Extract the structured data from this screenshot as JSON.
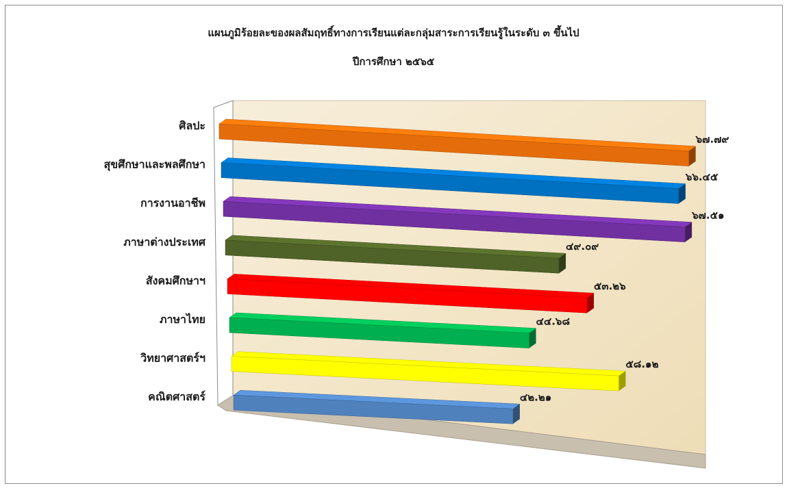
{
  "chart_data": {
    "type": "bar",
    "orientation": "horizontal",
    "title": "แผนภูมิร้อยละของผลสัมฤทธิ์ทางการเรียนแต่ละกลุ่มสาระการเรียนรู้ในระดับ ๓ ขึ้นไป",
    "subtitle": "ปีการศึกษา ๒๕๖๕",
    "categories": [
      "ศิลปะ",
      "สุขศึกษาและพลศึกษา",
      "การงานอาชีพ",
      "ภาษาต่างประเทศ",
      "สังคมศึกษาฯ",
      "ภาษาไทย",
      "วิทยาศาสตร์ฯ",
      "คณิตศาสตร์"
    ],
    "values": [
      67.79,
      66.45,
      67.51,
      49.09,
      53.26,
      44.68,
      58.12,
      42.21
    ],
    "value_labels": [
      "๖๗.๗๙",
      "๖๖.๔๕",
      "๖๗.๕๑",
      "๔๙.๐๙",
      "๕๓.๒๖",
      "๔๔.๖๘",
      "๕๘.๑๒",
      "๔๒.๒๑"
    ],
    "colors": [
      "#E46C0A",
      "#0070C0",
      "#7030A0",
      "#4F6228",
      "#FF0000",
      "#00B050",
      "#FFFF00",
      "#4F81BD"
    ],
    "xlim": [
      0,
      70
    ],
    "grid": false,
    "legend": "none",
    "style": "3d-perspective"
  }
}
